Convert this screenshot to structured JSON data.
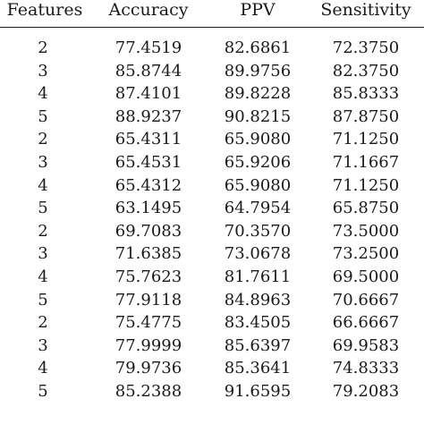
{
  "table": {
    "headers": [
      "Features",
      "Accuracy",
      "PPV",
      "Sensitivity"
    ],
    "rows": [
      [
        "2",
        "77.4519",
        "82.6861",
        "72.3750"
      ],
      [
        "3",
        "85.8744",
        "89.9756",
        "82.3750"
      ],
      [
        "4",
        "87.4101",
        "89.8228",
        "85.8333"
      ],
      [
        "5",
        "88.9237",
        "90.8215",
        "87.8750"
      ],
      [
        "2",
        "65.4311",
        "65.9080",
        "71.1250"
      ],
      [
        "3",
        "65.4531",
        "65.9206",
        "71.1667"
      ],
      [
        "4",
        "65.4312",
        "65.9080",
        "71.1250"
      ],
      [
        "5",
        "63.1495",
        "64.7954",
        "65.8750"
      ],
      [
        "2",
        "69.7083",
        "70.3570",
        "73.5000"
      ],
      [
        "3",
        "71.6385",
        "73.0678",
        "73.2500"
      ],
      [
        "4",
        "75.7623",
        "81.7611",
        "69.5000"
      ],
      [
        "5",
        "77.9118",
        "84.8963",
        "70.6667"
      ],
      [
        "2",
        "75.4775",
        "83.4505",
        "66.6667"
      ],
      [
        "3",
        "77.9999",
        "85.6397",
        "69.9583"
      ],
      [
        "4",
        "79.9736",
        "85.3641",
        "74.8333"
      ],
      [
        "5",
        "85.2388",
        "91.6595",
        "79.2083"
      ]
    ]
  }
}
